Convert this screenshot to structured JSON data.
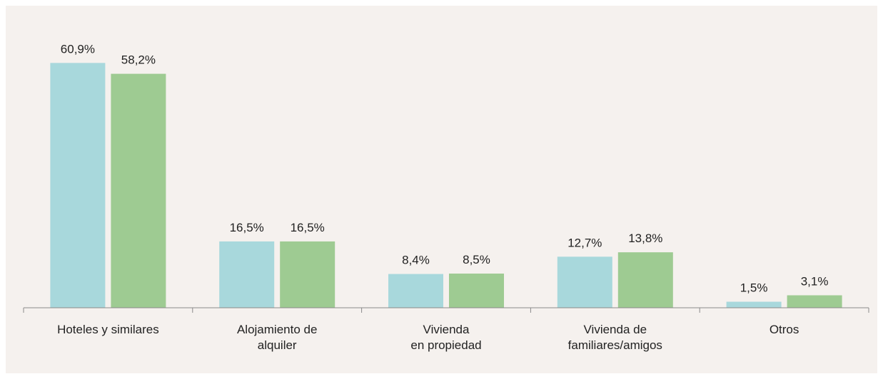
{
  "chart_data": {
    "type": "bar",
    "categories": [
      "Hoteles y similares",
      "Alojamiento de\nalquiler",
      "Vivienda\nen propiedad",
      "Vivienda de\nfamiliares/amigos",
      "Otros"
    ],
    "series": [
      {
        "color": "#a8d8dc",
        "values": [
          60.9,
          16.5,
          8.4,
          12.7,
          1.5
        ],
        "value_labels": [
          "60,9%",
          "16,5%",
          "8,4%",
          "12,7%",
          "1,5%"
        ]
      },
      {
        "color": "#9ecb92",
        "values": [
          58.2,
          16.5,
          8.5,
          13.8,
          3.1
        ],
        "value_labels": [
          "58,2%",
          "16,5%",
          "8,5%",
          "13,8%",
          "3,1%"
        ]
      }
    ],
    "ylim": [
      0,
      70
    ]
  }
}
